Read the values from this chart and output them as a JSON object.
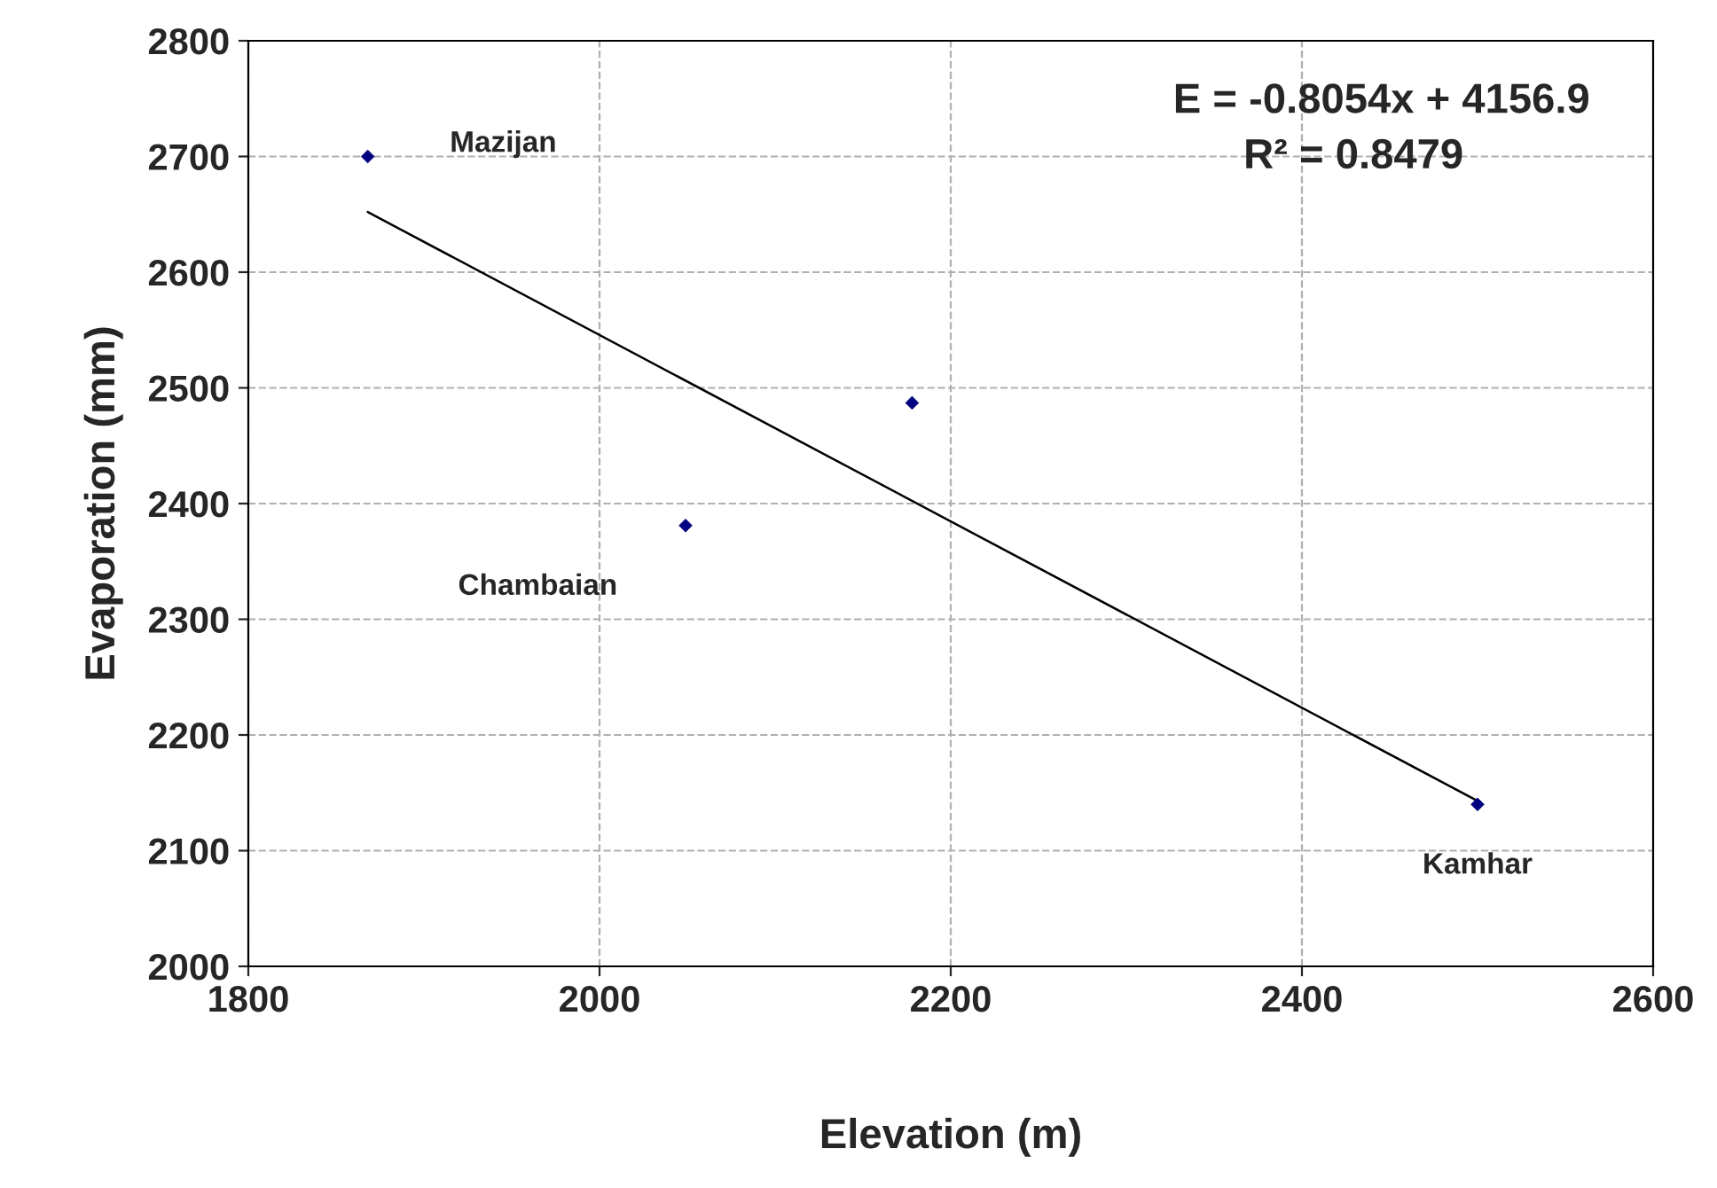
{
  "chart_data": {
    "type": "scatter",
    "xlabel": "Elevation (m)",
    "ylabel": "Evaporation (mm)",
    "xlim": [
      1800,
      2600
    ],
    "xticks": [
      1800,
      2000,
      2200,
      2400,
      2600
    ],
    "ylim": [
      2000,
      2800
    ],
    "yticks": [
      2000,
      2100,
      2200,
      2300,
      2400,
      2500,
      2600,
      2700,
      2800
    ],
    "grid": true,
    "marker": "diamond",
    "series": [
      {
        "color": "#000080",
        "x": [
          1868,
          2049,
          2178,
          2500
        ],
        "values": [
          2700,
          2381,
          2487,
          2140
        ]
      },
      {
        "type": "line",
        "color": "#000000",
        "line_style": "solid",
        "marker": "none",
        "x": [
          1868,
          2500
        ],
        "values": [
          2652,
          2143
        ]
      }
    ],
    "annotations": [
      {
        "text": "E = -0.8054x + 4156.9"
      },
      {
        "text": "R² = 0.8479"
      },
      {
        "text": "Mazijan",
        "x": 1868,
        "y": 2700
      },
      {
        "text": "Chambaian",
        "x": 2049,
        "y": 2381
      },
      {
        "text": "Kamhar",
        "x": 2500,
        "y": 2140
      }
    ]
  }
}
